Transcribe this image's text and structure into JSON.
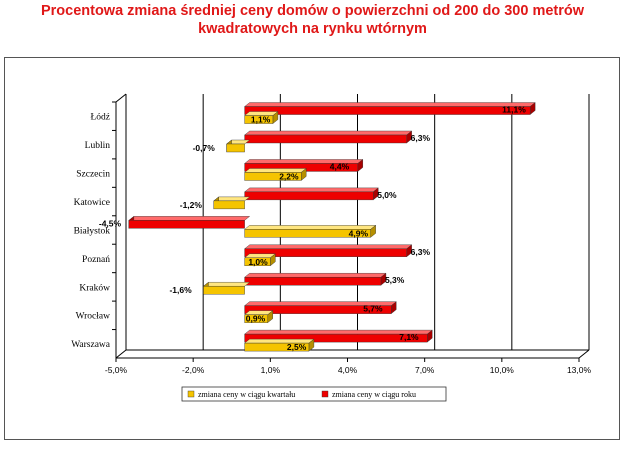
{
  "chart_data": {
    "type": "bar",
    "orientation": "horizontal",
    "title_line1": "Procentowa zmiana średniej ceny domów o powierzchni od 200 do 300 metrów",
    "title_line2": "kwadratowych na rynku wtórnym",
    "categories": [
      "Łódź",
      "Lublin",
      "Szczecin",
      "Katowice",
      "Białystok",
      "Poznań",
      "Kraków",
      "Wrocław",
      "Warszawa"
    ],
    "series": [
      {
        "name": "zmiana ceny w ciągu kwartału",
        "color": "#f5c400",
        "values": [
          1.1,
          -0.7,
          2.2,
          -1.2,
          4.9,
          1.0,
          -1.6,
          0.9,
          2.5
        ],
        "labels": [
          "1,1%",
          "-0,7%",
          "2,2%",
          "-1,2%",
          "4,9%",
          "1,0%",
          "-1,6%",
          "0,9%",
          "2,5%"
        ]
      },
      {
        "name": "zmiana ceny w ciągu roku",
        "color": "#ee0000",
        "values": [
          11.1,
          6.3,
          4.4,
          5.0,
          -4.5,
          6.3,
          5.3,
          5.7,
          7.1
        ],
        "labels": [
          "11,1%",
          "6,3%",
          "4,4%",
          "5,0%",
          "-4,5%",
          "6,3%",
          "5,3%",
          "5,7%",
          "7,1%"
        ]
      }
    ],
    "xlim": [
      -5.0,
      13.0
    ],
    "xticks": [
      -5.0,
      -2.0,
      1.0,
      4.0,
      7.0,
      10.0,
      13.0
    ],
    "xtick_labels": [
      "-5,0%",
      "-2,0%",
      "1,0%",
      "4,0%",
      "7,0%",
      "10,0%",
      "13,0%"
    ],
    "grid": "vertical",
    "legend_position": "bottom"
  }
}
